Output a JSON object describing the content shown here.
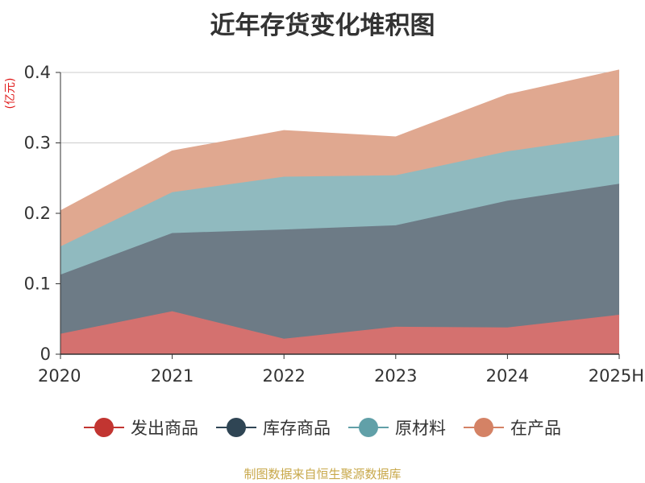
{
  "chart_data": {
    "type": "area",
    "stacked": true,
    "title": "近年存货变化堆积图",
    "unit_label": "(亿元)",
    "categories": [
      "2020",
      "2021",
      "2022",
      "2023",
      "2024",
      "2025H"
    ],
    "ylim": [
      0,
      0.4
    ],
    "y_ticks": [
      "0",
      "0.1",
      "0.2",
      "0.3",
      "0.4"
    ],
    "grid": true,
    "legend_position": "bottom",
    "series": [
      {
        "name": "发出商品",
        "color": "#c23531",
        "fill": "#d4716f",
        "values": [
          0.029,
          0.061,
          0.022,
          0.039,
          0.038,
          0.056
        ]
      },
      {
        "name": "库存商品",
        "color": "#2f4554",
        "fill": "#6d7b86",
        "values": [
          0.084,
          0.111,
          0.155,
          0.144,
          0.18,
          0.186
        ]
      },
      {
        "name": "原材料",
        "color": "#61a0a8",
        "fill": "#90babf",
        "values": [
          0.04,
          0.058,
          0.075,
          0.071,
          0.07,
          0.069
        ]
      },
      {
        "name": "在产品",
        "color": "#d48265",
        "fill": "#e0a890",
        "values": [
          0.05,
          0.058,
          0.065,
          0.054,
          0.08,
          0.092
        ]
      }
    ],
    "source": "制图数据来自恒生聚源数据库"
  }
}
